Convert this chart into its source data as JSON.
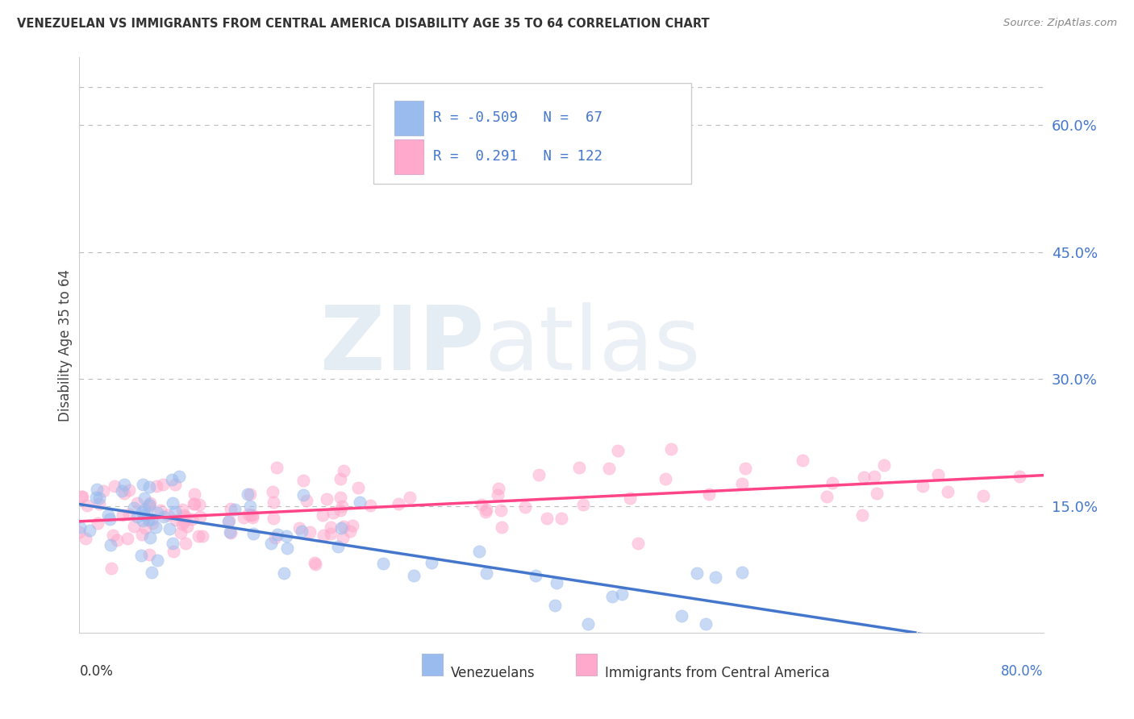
{
  "title": "VENEZUELAN VS IMMIGRANTS FROM CENTRAL AMERICA DISABILITY AGE 35 TO 64 CORRELATION CHART",
  "source": "Source: ZipAtlas.com",
  "ylabel": "Disability Age 35 to 64",
  "ytick_labels": [
    "15.0%",
    "30.0%",
    "45.0%",
    "60.0%"
  ],
  "ytick_values": [
    0.15,
    0.3,
    0.45,
    0.6
  ],
  "xmin": 0.0,
  "xmax": 0.8,
  "ymin": 0.0,
  "ymax": 0.68,
  "blue_color": "#99BBEE",
  "pink_color": "#FFAACC",
  "blue_line_color": "#4477CC",
  "pink_line_color": "#FF4488",
  "legend_text_color": "#4477CC",
  "right_tick_color": "#4477CC",
  "watermark_zip_color": "#C5D5E8",
  "watermark_atlas_color": "#C5D5E8"
}
